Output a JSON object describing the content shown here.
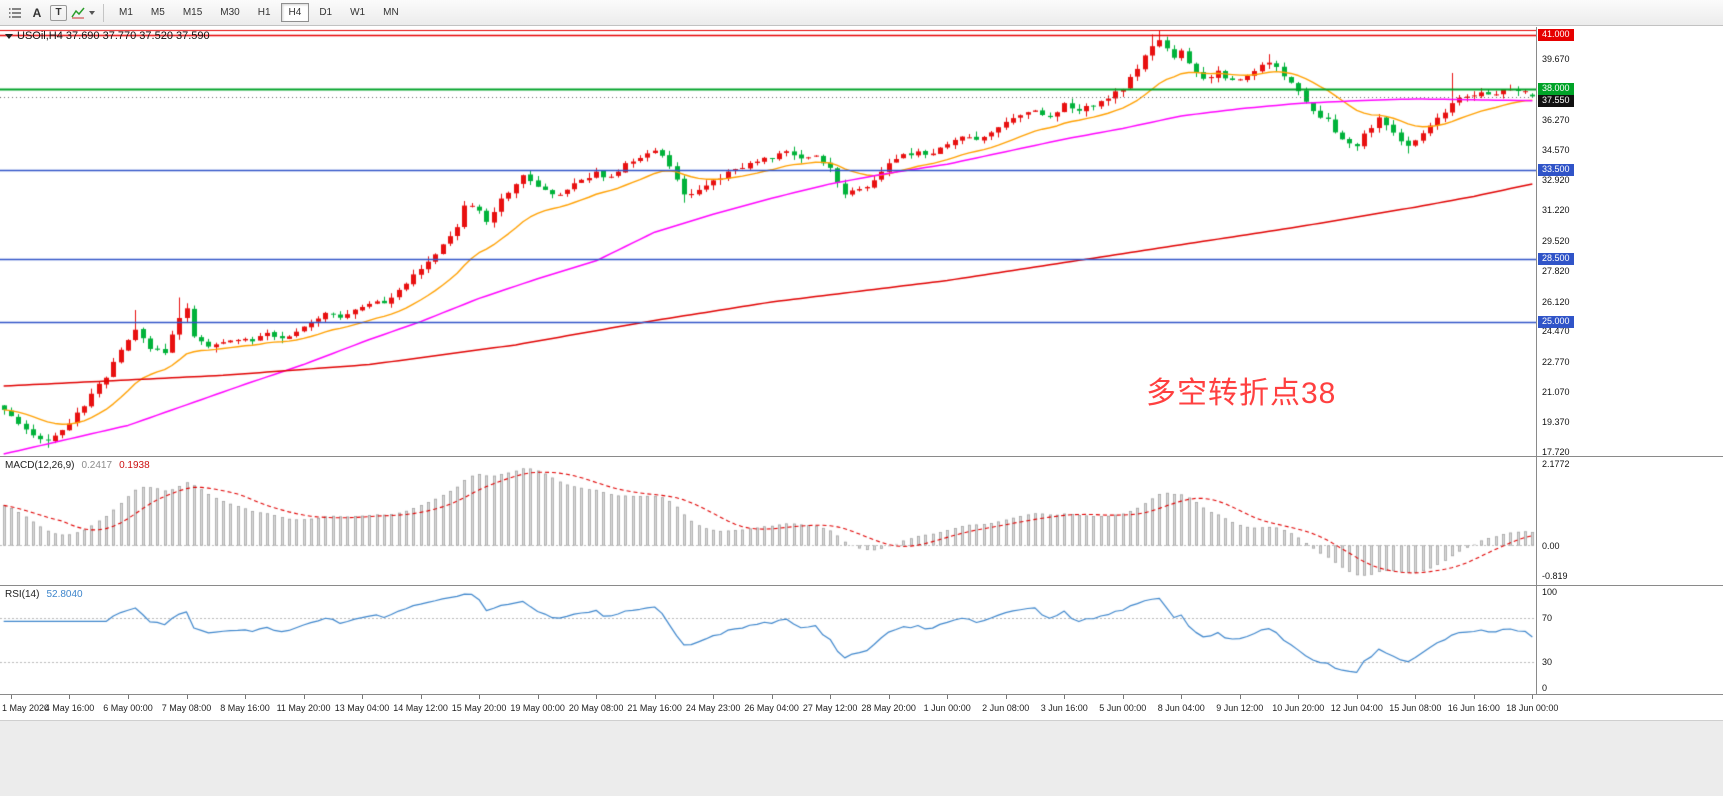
{
  "toolbar": {
    "cursor_label": "A",
    "text_label": "T",
    "timeframes": [
      "M1",
      "M5",
      "M15",
      "M30",
      "H1",
      "H4",
      "D1",
      "W1",
      "MN"
    ],
    "active_timeframe": "H4"
  },
  "chart": {
    "symbol_line": "USOil,H4 37.690 37.770 37.520 37.590",
    "annotation_text": "多空转折点38",
    "annotation_color": "#ff4040"
  },
  "chart_data": {
    "type": "candlestick",
    "symbol": "USOil",
    "timeframe": "H4",
    "bars": 210,
    "seed": 20200618,
    "y_range": {
      "max": 41.47,
      "min": 17.49
    },
    "last_bar": {
      "open": 37.69,
      "high": 37.77,
      "low": 37.52,
      "close": 37.59
    },
    "colors": {
      "up": "#e81010",
      "down": "#00b23a"
    },
    "close_waypoints": [
      [
        0,
        20.0
      ],
      [
        2,
        19.2
      ],
      [
        4,
        18.6
      ],
      [
        6,
        18.3
      ],
      [
        8,
        18.9
      ],
      [
        10,
        19.8
      ],
      [
        12,
        20.9
      ],
      [
        14,
        21.9
      ],
      [
        16,
        23.4
      ],
      [
        18,
        24.6
      ],
      [
        20,
        23.6
      ],
      [
        22,
        23.2
      ],
      [
        24,
        25.3
      ],
      [
        25,
        25.7
      ],
      [
        26,
        24.2
      ],
      [
        28,
        23.5
      ],
      [
        30,
        23.8
      ],
      [
        32,
        24.1
      ],
      [
        34,
        23.9
      ],
      [
        36,
        24.3
      ],
      [
        38,
        24.1
      ],
      [
        40,
        24.5
      ],
      [
        42,
        24.9
      ],
      [
        44,
        25.4
      ],
      [
        46,
        25.2
      ],
      [
        48,
        25.8
      ],
      [
        50,
        26.1
      ],
      [
        52,
        26.0
      ],
      [
        54,
        26.8
      ],
      [
        56,
        27.6
      ],
      [
        58,
        28.4
      ],
      [
        60,
        29.3
      ],
      [
        62,
        30.4
      ],
      [
        63,
        31.6
      ],
      [
        65,
        31.1
      ],
      [
        66,
        30.7
      ],
      [
        68,
        31.8
      ],
      [
        70,
        32.8
      ],
      [
        71,
        33.3
      ],
      [
        73,
        32.6
      ],
      [
        75,
        32.0
      ],
      [
        77,
        32.4
      ],
      [
        79,
        33.0
      ],
      [
        81,
        33.3
      ],
      [
        83,
        33.0
      ],
      [
        85,
        33.8
      ],
      [
        87,
        34.2
      ],
      [
        89,
        34.5
      ],
      [
        91,
        33.8
      ],
      [
        93,
        32.0
      ],
      [
        95,
        32.3
      ],
      [
        97,
        32.8
      ],
      [
        99,
        33.3
      ],
      [
        101,
        33.6
      ],
      [
        103,
        33.9
      ],
      [
        105,
        34.2
      ],
      [
        107,
        34.4
      ],
      [
        109,
        34.1
      ],
      [
        111,
        34.3
      ],
      [
        113,
        33.5
      ],
      [
        115,
        32.2
      ],
      [
        117,
        32.3
      ],
      [
        119,
        33.0
      ],
      [
        121,
        33.8
      ],
      [
        123,
        34.3
      ],
      [
        125,
        34.5
      ],
      [
        127,
        34.3
      ],
      [
        129,
        35.0
      ],
      [
        131,
        35.3
      ],
      [
        133,
        35.1
      ],
      [
        135,
        35.6
      ],
      [
        137,
        36.1
      ],
      [
        139,
        36.6
      ],
      [
        141,
        36.8
      ],
      [
        143,
        36.5
      ],
      [
        145,
        37.1
      ],
      [
        147,
        36.8
      ],
      [
        149,
        37.1
      ],
      [
        151,
        37.5
      ],
      [
        153,
        38.0
      ],
      [
        155,
        39.1
      ],
      [
        156,
        39.8
      ],
      [
        157,
        40.4
      ],
      [
        158,
        40.7
      ],
      [
        159,
        40.2
      ],
      [
        160,
        39.8
      ],
      [
        161,
        40.1
      ],
      [
        162,
        39.4
      ],
      [
        164,
        38.6
      ],
      [
        166,
        38.9
      ],
      [
        168,
        38.4
      ],
      [
        170,
        38.8
      ],
      [
        172,
        39.3
      ],
      [
        173,
        39.6
      ],
      [
        175,
        38.8
      ],
      [
        177,
        37.8
      ],
      [
        179,
        36.8
      ],
      [
        181,
        36.2
      ],
      [
        183,
        35.2
      ],
      [
        185,
        34.9
      ],
      [
        187,
        35.9
      ],
      [
        188,
        36.3
      ],
      [
        190,
        35.5
      ],
      [
        192,
        34.8
      ],
      [
        194,
        35.6
      ],
      [
        196,
        36.3
      ],
      [
        198,
        37.3
      ],
      [
        200,
        37.5
      ],
      [
        202,
        37.9
      ],
      [
        204,
        37.7
      ],
      [
        206,
        38.0
      ],
      [
        208,
        37.8
      ],
      [
        209,
        37.59
      ]
    ],
    "wick_overrides": [
      {
        "bar": 6,
        "low": 17.95
      },
      {
        "bar": 18,
        "high": 25.65
      },
      {
        "bar": 24,
        "high": 26.35
      },
      {
        "bar": 93,
        "low": 31.65
      },
      {
        "bar": 115,
        "low": 31.9
      },
      {
        "bar": 157,
        "high": 41.05
      },
      {
        "bar": 158,
        "high": 41.28
      },
      {
        "bar": 173,
        "high": 39.95
      },
      {
        "bar": 185,
        "low": 34.55
      },
      {
        "bar": 192,
        "low": 34.4
      },
      {
        "bar": 198,
        "high": 38.9
      }
    ],
    "moving_averages": {
      "fast": {
        "type": "ema",
        "period": 16,
        "color": "#ffa000"
      },
      "mid": {
        "color": "#ff00ff",
        "waypoints": [
          [
            0,
            17.6
          ],
          [
            17,
            19.2
          ],
          [
            33,
            21.5
          ],
          [
            41,
            22.6
          ],
          [
            50,
            24.0
          ],
          [
            57,
            25.0
          ],
          [
            65,
            26.3
          ],
          [
            73,
            27.4
          ],
          [
            81,
            28.4
          ],
          [
            89,
            30.0
          ],
          [
            97,
            31.0
          ],
          [
            105,
            31.9
          ],
          [
            113,
            32.7
          ],
          [
            121,
            33.3
          ],
          [
            129,
            33.8
          ],
          [
            137,
            34.5
          ],
          [
            145,
            35.2
          ],
          [
            153,
            35.8
          ],
          [
            161,
            36.5
          ],
          [
            169,
            36.9
          ],
          [
            177,
            37.2
          ],
          [
            185,
            37.35
          ],
          [
            193,
            37.45
          ],
          [
            201,
            37.4
          ],
          [
            209,
            37.35
          ]
        ]
      },
      "slow": {
        "color": "#e00000",
        "waypoints": [
          [
            0,
            21.4
          ],
          [
            30,
            22.0
          ],
          [
            50,
            22.6
          ],
          [
            70,
            23.7
          ],
          [
            88,
            25.0
          ],
          [
            105,
            26.1
          ],
          [
            121,
            26.9
          ],
          [
            129,
            27.3
          ],
          [
            145,
            28.3
          ],
          [
            161,
            29.3
          ],
          [
            177,
            30.3
          ],
          [
            193,
            31.4
          ],
          [
            201,
            32.0
          ],
          [
            209,
            32.7
          ]
        ]
      }
    },
    "hlines": [
      {
        "price": 41.3,
        "color": "#e60000",
        "width": 1
      },
      {
        "price": 41.0,
        "color": "#e60000",
        "width": 1.5
      },
      {
        "price": 38.0,
        "color": "#00a328",
        "width": 1.8
      },
      {
        "price": 37.55,
        "color": "#666666",
        "width": 1,
        "dash": [
          1,
          3
        ]
      },
      {
        "price": 33.5,
        "color": "#3054c8",
        "width": 1.5
      },
      {
        "price": 28.5,
        "color": "#3054c8",
        "width": 1.5
      },
      {
        "price": 25.0,
        "color": "#3054c8",
        "width": 1.5
      }
    ],
    "price_axis_labels": [
      {
        "text": "39.670",
        "price": 39.67
      },
      {
        "text": "36.270",
        "price": 36.27
      },
      {
        "text": "34.570",
        "price": 34.57
      },
      {
        "text": "32.920",
        "price": 32.92
      },
      {
        "text": "31.220",
        "price": 31.22
      },
      {
        "text": "29.520",
        "price": 29.52
      },
      {
        "text": "27.820",
        "price": 27.82
      },
      {
        "text": "26.120",
        "price": 26.12
      },
      {
        "text": "24.470",
        "price": 24.47
      },
      {
        "text": "22.770",
        "price": 22.77
      },
      {
        "text": "21.070",
        "price": 21.07
      },
      {
        "text": "19.370",
        "price": 19.37
      },
      {
        "text": "17.720",
        "price": 17.72
      }
    ],
    "price_axis_badges": [
      {
        "text": "41.000",
        "price": 41.0,
        "bg": "#e60000"
      },
      {
        "text": "38.000",
        "price": 38.0,
        "bg": "#00a328"
      },
      {
        "text": "37.550",
        "price": 37.55,
        "bg": "#111111"
      },
      {
        "text": "33.500",
        "price": 33.5,
        "bg": "#3054c8"
      },
      {
        "text": "28.500",
        "price": 28.5,
        "bg": "#3054c8"
      },
      {
        "text": "25.000",
        "price": 25.0,
        "bg": "#3054c8"
      }
    ],
    "time_labels": [
      "1 May 2020",
      "4 May 16:00",
      "6 May 00:00",
      "7 May 08:00",
      "8 May 16:00",
      "11 May 20:00",
      "13 May 04:00",
      "14 May 12:00",
      "15 May 20:00",
      "19 May 00:00",
      "20 May 08:00",
      "21 May 16:00",
      "24 May 23:00",
      "26 May 04:00",
      "27 May 12:00",
      "28 May 20:00",
      "1 Jun 00:00",
      "2 Jun 08:00",
      "3 Jun 16:00",
      "5 Jun 00:00",
      "8 Jun 04:00",
      "9 Jun 12:00",
      "10 Jun 20:00",
      "12 Jun 04:00",
      "15 Jun 08:00",
      "16 Jun 16:00",
      "18 Jun 00:00"
    ]
  },
  "macd": {
    "label": "MACD(12,26,9)",
    "value_main": "0.2417",
    "value_signal": "0.1938",
    "axis_labels": [
      {
        "text": "2.1772",
        "value": 2.1772
      },
      {
        "text": "0.00",
        "value": 0
      },
      {
        "text": "-0.819",
        "value": -0.819
      }
    ],
    "histogram_color": "#d9d9d9",
    "histogram_border": "#a0a0a0",
    "signal_color": "#e00000"
  },
  "rsi": {
    "label": "RSI(14)",
    "value": "52.8040",
    "period": 14,
    "current": 52.804,
    "axis_labels": [
      {
        "text": "100",
        "value": 100
      },
      {
        "text": "70",
        "value": 70
      },
      {
        "text": "30",
        "value": 30
      },
      {
        "text": "0",
        "value": 0
      }
    ],
    "levels": [
      70,
      30
    ],
    "line_color": "#3e86cc"
  }
}
